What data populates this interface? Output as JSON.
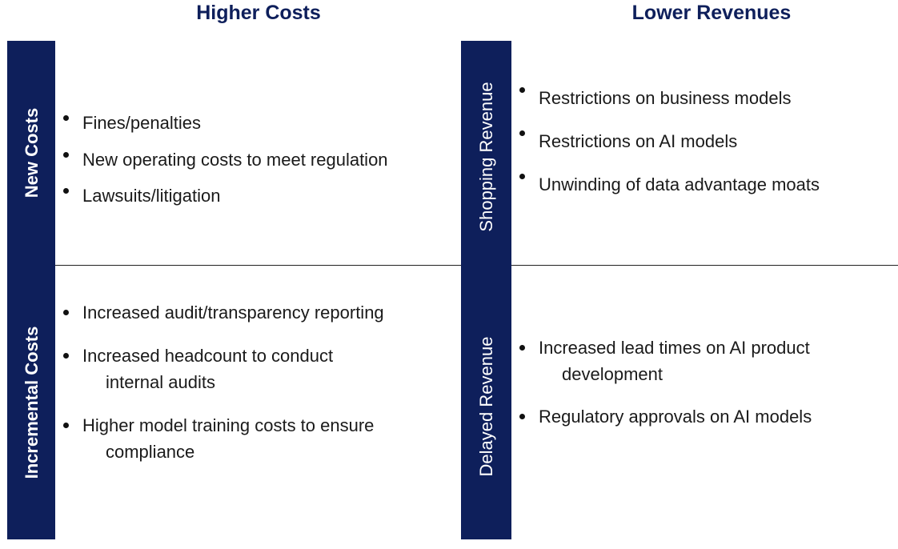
{
  "colors": {
    "navy": "#0e1f5b",
    "header_text": "#0e1f5b"
  },
  "headers": {
    "left": "Higher Costs",
    "right": "Lower Revenues"
  },
  "bars": {
    "left": {
      "top": "New Costs",
      "bottom": "Incremental Costs"
    },
    "right": {
      "top": "Shopping Revenue",
      "bottom": "Delayed Revenue"
    }
  },
  "quadrants": {
    "top_left": [
      "Fines/penalties",
      "New operating costs to meet regulation",
      "Lawsuits/litigation"
    ],
    "bottom_left": [
      {
        "line1": "Increased audit/transparency reporting",
        "line2": ""
      },
      {
        "line1": "Increased headcount to conduct",
        "line2": "internal audits"
      },
      {
        "line1": "Higher model training costs to ensure",
        "line2": "compliance"
      }
    ],
    "top_right": [
      "Restrictions on business models",
      "Restrictions on AI models",
      "Unwinding of data advantage moats"
    ],
    "bottom_right": [
      {
        "line1": "Increased lead times on AI product",
        "line2": "development"
      },
      {
        "line1": "Regulatory approvals on AI models",
        "line2": ""
      }
    ]
  }
}
